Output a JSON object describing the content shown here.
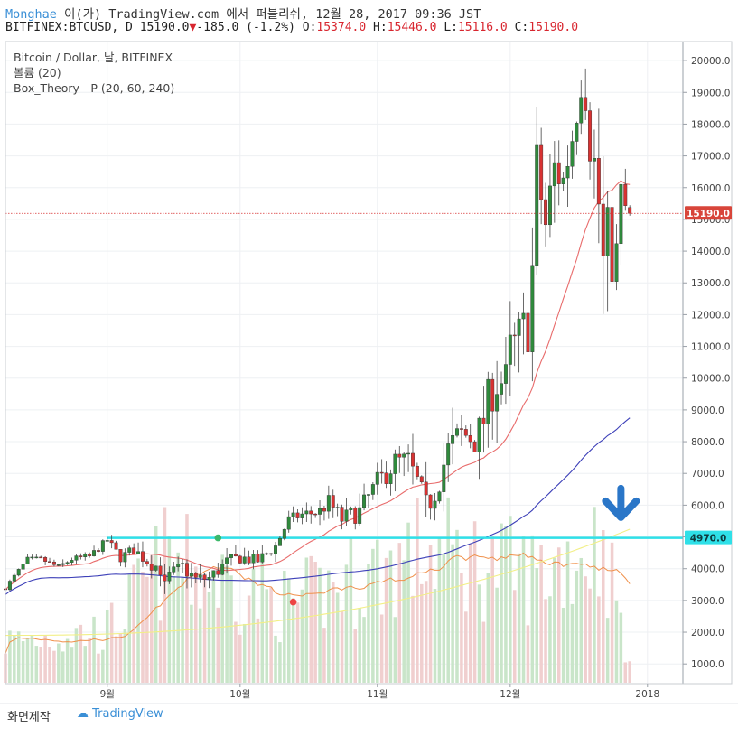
{
  "header": {
    "author": "Monghae",
    "published_text": "이(가) TradingView.com 에서 퍼블리쉬, 12월 28, 2017 09:36 JST",
    "symbol": "BITFINEX:BTCUSD, D",
    "last": "15190.0",
    "change": "-185.0 (-1.2%)",
    "ohlc": [
      {
        "k": "O:",
        "v": "15374.0"
      },
      {
        "k": "H:",
        "v": "15446.0"
      },
      {
        "k": "L:",
        "v": "15116.0"
      },
      {
        "k": "C:",
        "v": "15190.0"
      }
    ]
  },
  "legend": [
    "Bitcoin / Dollar, 날, BITFINEX",
    "볼륨 (20)",
    "Box_Theory - P (20, 60, 240)"
  ],
  "footer": {
    "credit": "화면제작",
    "brand": "TradingView"
  },
  "colors": {
    "up": "#2f8a3c",
    "down": "#d83232",
    "ma20": "#e86b6b",
    "ma60": "#3c3fb8",
    "ma240": "#f2ef86",
    "level": "#2fe0e8",
    "vol_up": "#c9e5c9",
    "vol_down": "#f0cfcf",
    "vol_ma": "#f0904a",
    "arrow": "#2a76c8"
  },
  "chart_data": {
    "type": "candlestick",
    "title": "Bitcoin / Dollar, 날, BITFINEX",
    "y_ticks": [
      1000,
      2000,
      3000,
      4000,
      5000,
      6000,
      7000,
      8000,
      9000,
      10000,
      11000,
      12000,
      13000,
      14000,
      15000,
      16000,
      17000,
      18000,
      19000,
      20000
    ],
    "y_tick_labels": [
      "1000.0",
      "2000.0",
      "3000.0",
      "4000.0",
      "5000.0",
      "6000.0",
      "7000.0",
      "8000.0",
      "9000.0",
      "10000.0",
      "11000.0",
      "12000.0",
      "13000.0",
      "14000.0",
      "15000.0",
      "16000.0",
      "17000.0",
      "18000.0",
      "19000.0",
      "20000.0"
    ],
    "ylim": [
      380,
      20600
    ],
    "x_range": [
      "2017-08-09",
      "2018-01-09"
    ],
    "x_ticks": [
      {
        "date": "2017-09-01",
        "label": "9월"
      },
      {
        "date": "2017-10-01",
        "label": "10월"
      },
      {
        "date": "2017-11-01",
        "label": "11월"
      },
      {
        "date": "2017-12-01",
        "label": "12월"
      },
      {
        "date": "2018-01-01",
        "label": "2018"
      }
    ],
    "last_price": {
      "value": 15190,
      "label": "15190.0"
    },
    "level": {
      "value": 4970,
      "label": "4970.0",
      "start_date": "2017-09-01"
    },
    "markers": [
      {
        "date": "2017-09-26",
        "price": 4970,
        "color": "#3cb86a"
      },
      {
        "date": "2017-10-13",
        "price": 2950,
        "color": "#ee4444"
      }
    ],
    "arrow": {
      "date": "2017-12-26",
      "price": 5900
    },
    "anchors": {
      "start_date": "2017-08-09",
      "end_date": "2017-12-28",
      "close": [
        [
          "2017-08-09",
          3400
        ],
        [
          "2017-08-14",
          4300
        ],
        [
          "2017-08-17",
          4300
        ],
        [
          "2017-08-21",
          4050
        ],
        [
          "2017-08-24",
          4300
        ],
        [
          "2017-08-28",
          4380
        ],
        [
          "2017-09-01",
          4900
        ],
        [
          "2017-09-04",
          4350
        ],
        [
          "2017-09-07",
          4600
        ],
        [
          "2017-09-10",
          4250
        ],
        [
          "2017-09-13",
          4000
        ],
        [
          "2017-09-14",
          3400
        ],
        [
          "2017-09-15",
          3750
        ],
        [
          "2017-09-18",
          4050
        ],
        [
          "2017-09-21",
          3650
        ],
        [
          "2017-09-24",
          3700
        ],
        [
          "2017-09-28",
          4200
        ],
        [
          "2017-10-01",
          4350
        ],
        [
          "2017-10-05",
          4250
        ],
        [
          "2017-10-09",
          4700
        ],
        [
          "2017-10-12",
          5550
        ],
        [
          "2017-10-15",
          5700
        ],
        [
          "2017-10-19",
          5800
        ],
        [
          "2017-10-21",
          6100
        ],
        [
          "2017-10-24",
          5550
        ],
        [
          "2017-10-28",
          5800
        ],
        [
          "2017-11-01",
          6700
        ],
        [
          "2017-11-05",
          7350
        ],
        [
          "2017-11-08",
          7350
        ],
        [
          "2017-11-10",
          6700
        ],
        [
          "2017-11-12",
          5900
        ],
        [
          "2017-11-14",
          6500
        ],
        [
          "2017-11-17",
          7700
        ],
        [
          "2017-11-20",
          8200
        ],
        [
          "2017-11-24",
          8200
        ],
        [
          "2017-11-27",
          9700
        ],
        [
          "2017-11-28",
          9900
        ],
        [
          "2017-11-29",
          9900
        ],
        [
          "2017-11-30",
          9800
        ],
        [
          "2017-12-01",
          10800
        ],
        [
          "2017-12-03",
          11200
        ],
        [
          "2017-12-05",
          11700
        ],
        [
          "2017-12-06",
          13400
        ],
        [
          "2017-12-07",
          16600
        ],
        [
          "2017-12-09",
          14800
        ],
        [
          "2017-12-11",
          16600
        ],
        [
          "2017-12-13",
          16200
        ],
        [
          "2017-12-15",
          17600
        ],
        [
          "2017-12-17",
          19300
        ],
        [
          "2017-12-18",
          19000
        ],
        [
          "2017-12-19",
          17500
        ],
        [
          "2017-12-20",
          16700
        ],
        [
          "2017-12-21",
          15500
        ],
        [
          "2017-12-22",
          13500
        ],
        [
          "2017-12-23",
          14300
        ],
        [
          "2017-12-24",
          13800
        ],
        [
          "2017-12-25",
          13900
        ],
        [
          "2017-12-26",
          15800
        ],
        [
          "2017-12-27",
          15374
        ],
        [
          "2017-12-28",
          15190
        ]
      ],
      "range": [
        [
          "2017-08-09",
          150
        ],
        [
          "2017-09-01",
          300
        ],
        [
          "2017-09-14",
          700
        ],
        [
          "2017-10-12",
          400
        ],
        [
          "2017-11-12",
          1200
        ],
        [
          "2017-12-07",
          2500
        ],
        [
          "2017-12-17",
          1400
        ],
        [
          "2017-12-22",
          3400
        ],
        [
          "2017-12-28",
          350
        ]
      ],
      "volume": [
        [
          "2017-08-09",
          1600
        ],
        [
          "2017-09-01",
          2000
        ],
        [
          "2017-09-14",
          4700
        ],
        [
          "2017-10-12",
          3000
        ],
        [
          "2017-11-12",
          5100
        ],
        [
          "2017-12-07",
          4200
        ],
        [
          "2017-12-22",
          5500
        ],
        [
          "2017-12-28",
          700
        ]
      ]
    },
    "series": [
      {
        "name": "Box_Theory - P (20)",
        "color": "#e86b6b",
        "period": 20
      },
      {
        "name": "Box_Theory - P (60)",
        "color": "#3c3fb8",
        "period": 60
      },
      {
        "name": "Box_Theory - P (240)",
        "color": "#f2ef86",
        "period": 240
      },
      {
        "name": "볼륨 (20)",
        "color": "#f0904a",
        "period": 20
      }
    ],
    "grid": true,
    "legend_position": "top-left"
  }
}
